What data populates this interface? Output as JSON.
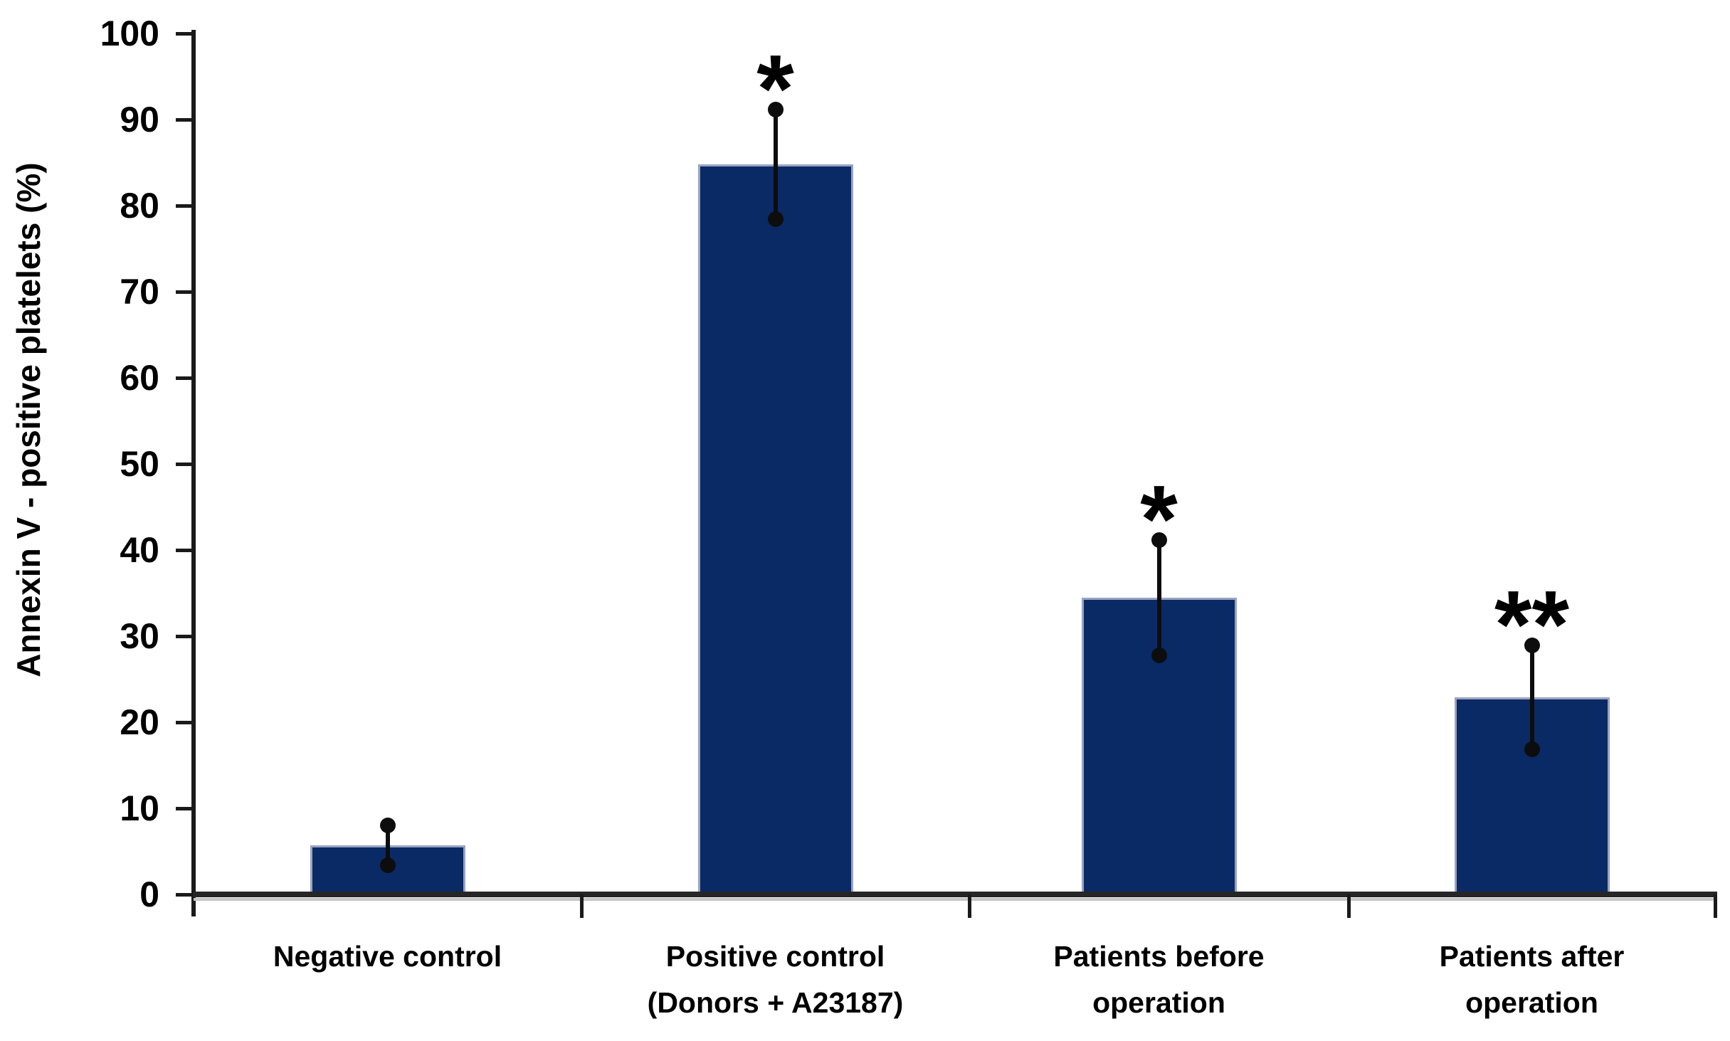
{
  "chart_data": {
    "type": "bar",
    "title": "",
    "ylabel": "Annexin V - positive platelets (%)",
    "xlabel": "",
    "ylim": [
      0,
      100
    ],
    "ytick_step": 10,
    "yticks": [
      0,
      10,
      20,
      30,
      40,
      50,
      60,
      70,
      80,
      90,
      100
    ],
    "grid": false,
    "legend_position": "none",
    "bar_color": "#0a2a66",
    "bar_edge_color": "#9aa3c0",
    "error_bar_color": "#0d0d0d",
    "error_bar_style": "plus-minus line with round dot caps",
    "categories": [
      "Negative control",
      "Positive control (Donors + A23187)",
      "Patients before operation",
      "Patients after operation"
    ],
    "category_label_lines": [
      [
        "Negative control"
      ],
      [
        "Positive control",
        "(Donors + A23187)"
      ],
      [
        "Patients before",
        "operation"
      ],
      [
        "Patients after",
        "operation"
      ]
    ],
    "values": [
      5.7,
      84.8,
      34.5,
      22.9
    ],
    "error_bars": [
      2.3,
      6.4,
      6.7,
      6.0
    ],
    "significance": [
      "",
      "*",
      "*",
      "**"
    ]
  }
}
